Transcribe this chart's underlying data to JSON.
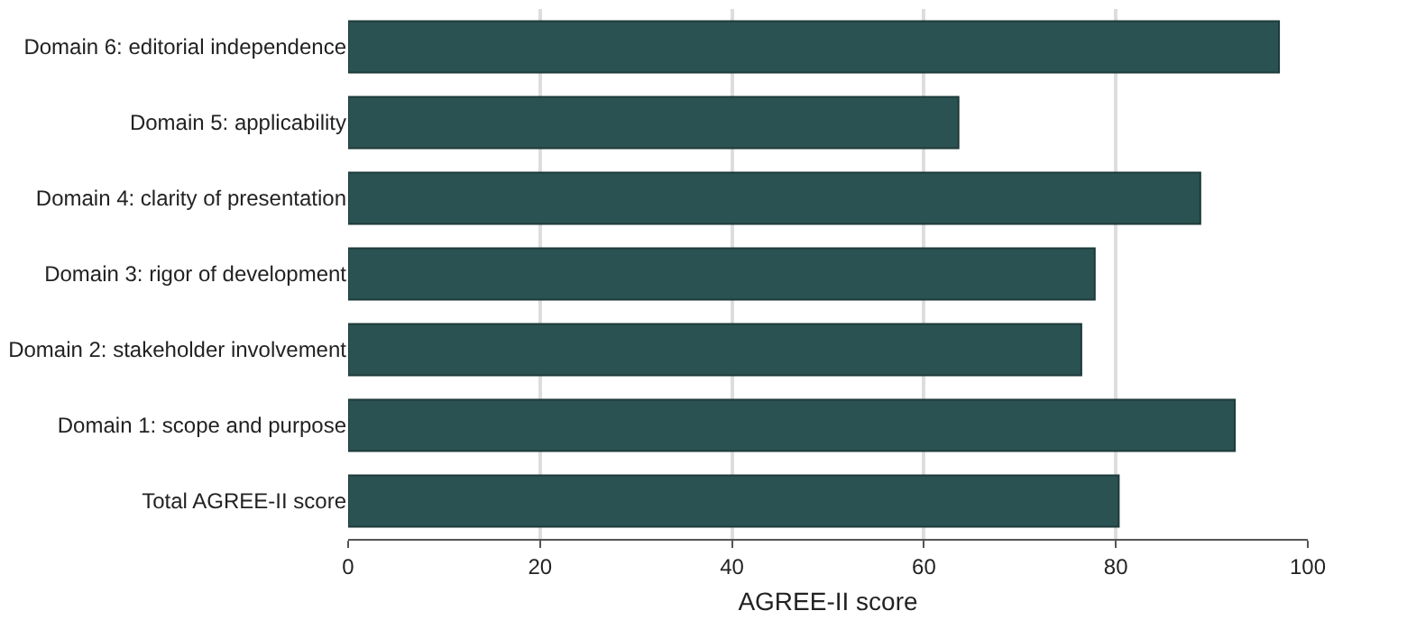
{
  "chart_data": {
    "type": "bar",
    "orientation": "horizontal",
    "xlabel": "AGREE-II score",
    "categories": [
      "Domain 6: editorial independence",
      "Domain 5: applicability",
      "Domain 4: clarity of presentation",
      "Domain 3: rigor of development",
      "Domain 2: stakeholder involvement",
      "Domain 1: scope and purpose",
      "Total AGREE-II score"
    ],
    "values": [
      97.0,
      63.6,
      88.8,
      77.8,
      76.4,
      92.4,
      80.3
    ],
    "color": "#2b5252",
    "xlim": [
      0,
      100
    ],
    "xticks": [
      0,
      20,
      40,
      60,
      80,
      100
    ],
    "grid": "x"
  }
}
